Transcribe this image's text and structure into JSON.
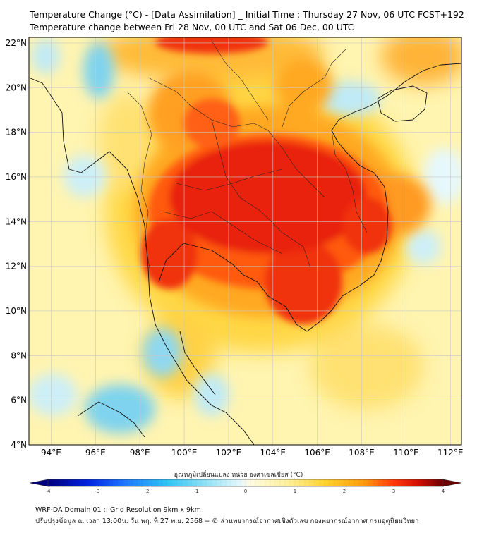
{
  "header": {
    "title_line1": "Temperature Change (°C) - [Data Assimilation] _ Initial Time : Thursday 27 Nov, 06 UTC FCST+192",
    "title_line2": "Temperature change between Fri 28 Nov, 00 UTC and Sat 06 Dec, 00 UTC"
  },
  "map": {
    "lon_min": 93,
    "lon_max": 112.5,
    "lat_min": 4,
    "lat_max": 22.25,
    "lat_ticks": [
      {
        "value": 4,
        "label": "4°N"
      },
      {
        "value": 6,
        "label": "6°N"
      },
      {
        "value": 8,
        "label": "8°N"
      },
      {
        "value": 10,
        "label": "10°N"
      },
      {
        "value": 12,
        "label": "12°N"
      },
      {
        "value": 14,
        "label": "14°N"
      },
      {
        "value": 16,
        "label": "16°N"
      },
      {
        "value": 18,
        "label": "18°N"
      },
      {
        "value": 20,
        "label": "20°N"
      },
      {
        "value": 22,
        "label": "22°N"
      }
    ],
    "lon_ticks": [
      {
        "value": 94,
        "label": "94°E"
      },
      {
        "value": 96,
        "label": "96°E"
      },
      {
        "value": 98,
        "label": "98°E"
      },
      {
        "value": 100,
        "label": "100°E"
      },
      {
        "value": 102,
        "label": "102°E"
      },
      {
        "value": 104,
        "label": "104°E"
      },
      {
        "value": 106,
        "label": "106°E"
      },
      {
        "value": 108,
        "label": "108°E"
      },
      {
        "value": 110,
        "label": "110°E"
      },
      {
        "value": 112,
        "label": "112°E"
      }
    ],
    "colors": {
      "background": "#fff4b0",
      "hot_core": "#e8200a",
      "hot_mid": "#ff5a10",
      "warm": "#ffa820",
      "mild": "#ffd640",
      "cool": "#cdeff7",
      "cold": "#7fd3ee",
      "coastline": "#111111",
      "gridline": "#c8c8c8"
    }
  },
  "colorbar": {
    "title": "อุณหภูมิเปลี่ยนแปลง หน่วย องศาเซลเซียส (°C)",
    "min": -4,
    "max": 4,
    "ticks": [
      {
        "value": -4,
        "label": "-4"
      },
      {
        "value": -3,
        "label": "-3"
      },
      {
        "value": -2,
        "label": "-2"
      },
      {
        "value": -1,
        "label": "-1"
      },
      {
        "value": 0,
        "label": "0"
      },
      {
        "value": 1,
        "label": "1"
      },
      {
        "value": 2,
        "label": "2"
      },
      {
        "value": 3,
        "label": "3"
      },
      {
        "value": 4,
        "label": "4"
      }
    ],
    "stops": [
      {
        "value": -4,
        "color": "#00007a"
      },
      {
        "value": -3.2,
        "color": "#0022dd"
      },
      {
        "value": -2.4,
        "color": "#1e7cff"
      },
      {
        "value": -1.6,
        "color": "#2ec4f6"
      },
      {
        "value": -0.8,
        "color": "#8fe2f6"
      },
      {
        "value": -0.1,
        "color": "#e6f8fc"
      },
      {
        "value": 0.1,
        "color": "#fffbe0"
      },
      {
        "value": 0.8,
        "color": "#fff2a0"
      },
      {
        "value": 1.6,
        "color": "#ffd230"
      },
      {
        "value": 2.4,
        "color": "#ff9a10"
      },
      {
        "value": 3.0,
        "color": "#ff3a08"
      },
      {
        "value": 3.5,
        "color": "#d01000"
      },
      {
        "value": 4,
        "color": "#6a0000"
      }
    ]
  },
  "footer": {
    "line1": "WRF-DA Domain 01 :: Grid Resolution 9km x 9km",
    "line2": "ปรับปรุงข้อมูล ณ เวลา 13:00น. วัน พฤ. ที่ 27 พ.ย. 2568 -- © ส่วนพยากรณ์อากาศเชิงตัวเลข กองพยากรณ์อากาศ กรมอุตุนิยมวิทยา"
  }
}
